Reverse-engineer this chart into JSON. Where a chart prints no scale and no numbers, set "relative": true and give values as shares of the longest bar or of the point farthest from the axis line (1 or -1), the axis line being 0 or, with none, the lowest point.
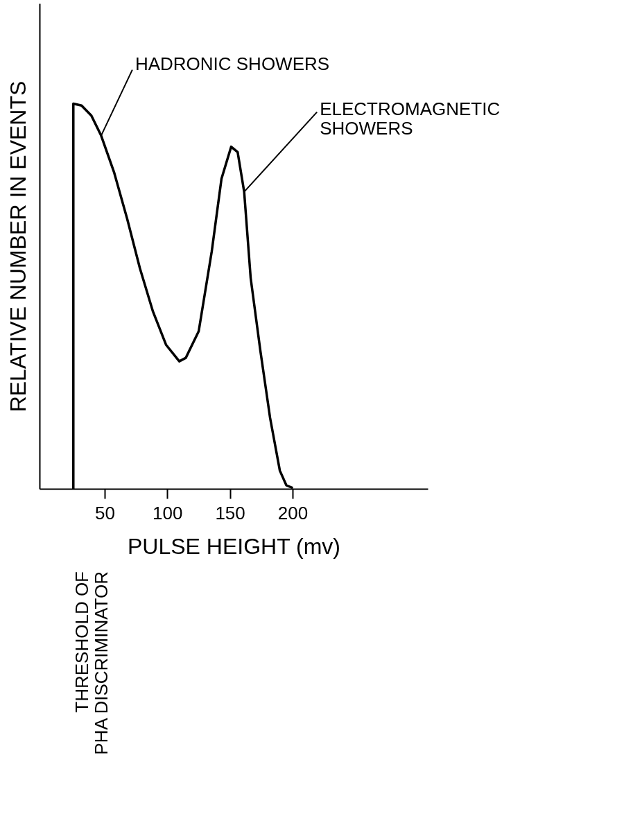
{
  "chart_data": {
    "type": "line",
    "relative": true,
    "xlabel": "PULSE HEIGHT (mv)",
    "ylabel": "RELATIVE NUMBER IN EVENTS",
    "x": [
      25,
      25,
      31.6,
      39.4,
      47.2,
      57.5,
      67.9,
      78.2,
      88.6,
      99,
      109.6,
      114.8,
      125.1,
      135.5,
      143.3,
      151,
      156.2,
      161.4,
      166.6,
      174.4,
      182.1,
      189.9,
      195.1,
      200.3
    ],
    "values": [
      0,
      1,
      0.995,
      0.969,
      0.917,
      0.822,
      0.702,
      0.572,
      0.46,
      0.374,
      0.331,
      0.34,
      0.409,
      0.616,
      0.805,
      0.888,
      0.874,
      0.771,
      0.547,
      0.357,
      0.184,
      0.047,
      0.009,
      0.002
    ],
    "color": "#000000",
    "xlim": [
      -2,
      308
    ],
    "xticks": [
      50,
      100,
      150,
      200
    ],
    "annotations": [
      {
        "text": "HADRONIC SHOWERS",
        "x": 47.2,
        "y": 0.917
      },
      {
        "text": "ELECTROMAGNETIC\nSHOWERS",
        "x": 161.4,
        "y": 0.771
      },
      "THRESHOLD OF\nPHA DISCRIMINATOR"
    ],
    "grid": false,
    "marker": "none",
    "line_style": "solid"
  }
}
